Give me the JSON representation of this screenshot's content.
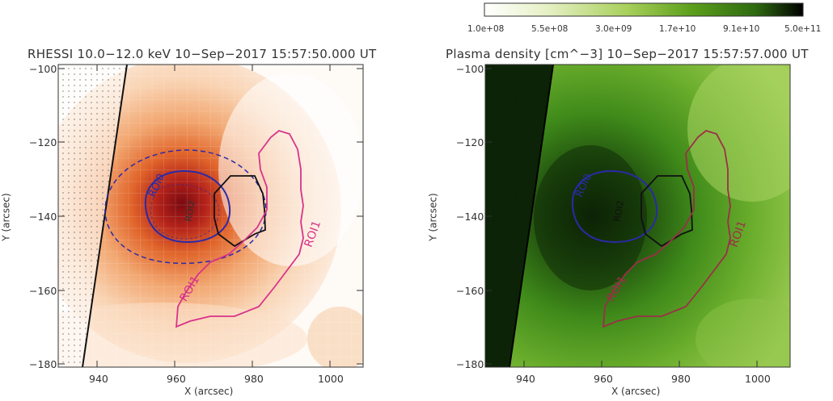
{
  "figure": {
    "colorbar": {
      "ticks": [
        "1.0e+08",
        "5.5e+08",
        "3.0e+09",
        "1.7e+10",
        "9.1e+10",
        "5.0e+11"
      ],
      "colormap": [
        "#ffffff",
        "#e5f0c4",
        "#a7cf5a",
        "#5c9f1c",
        "#2e6a10",
        "#000000"
      ]
    },
    "panels": [
      {
        "id": "left",
        "title": "RHESSI 10.0−12.0 keV 10−Sep−2017 15:57:50.000 UT",
        "xlabel": "X (arcsec)",
        "ylabel": "Y (arcsec)",
        "xticks": [
          "940",
          "960",
          "980",
          "1000"
        ],
        "yticks": [
          "−100",
          "−120",
          "−140",
          "−160",
          "−180"
        ],
        "roi_labels": {
          "roi0": "ROI0",
          "roi1a": "ROI1",
          "roi1b": "ROI1",
          "roi2": "ROI2"
        }
      },
      {
        "id": "right",
        "title": "Plasma density [cm^−3] 10−Sep−2017 15:57:57.000 UT",
        "xlabel": "X (arcsec)",
        "ylabel": "Y (arcsec)",
        "xticks": [
          "940",
          "960",
          "980",
          "1000"
        ],
        "yticks": [
          "−100",
          "−120",
          "−140",
          "−160",
          "−180"
        ],
        "roi_labels": {
          "roi0": "ROI0",
          "roi1": "ROI1",
          "roi2": "ROI2",
          "roi1b": "ROI1"
        }
      }
    ],
    "colors": {
      "roi0": "#2a2aa8",
      "roi1_left": "#d8338a",
      "roi1_right": "#9b2f48",
      "roi2": "#111111",
      "hxr_contour": "#2a2aa8"
    }
  }
}
